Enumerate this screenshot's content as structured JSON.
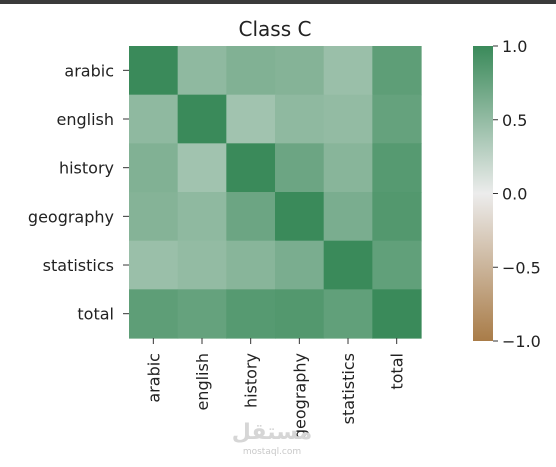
{
  "chart_data": {
    "type": "heatmap",
    "title": "Class C",
    "rows": [
      "arabic",
      "english",
      "history",
      "geography",
      "statistics",
      "total"
    ],
    "columns": [
      "arabic",
      "english",
      "history",
      "geography",
      "statistics",
      "total"
    ],
    "values": [
      [
        1.0,
        0.52,
        0.6,
        0.58,
        0.46,
        0.8
      ],
      [
        0.52,
        1.0,
        0.42,
        0.52,
        0.5,
        0.76
      ],
      [
        0.6,
        0.42,
        1.0,
        0.72,
        0.56,
        0.84
      ],
      [
        0.58,
        0.52,
        0.72,
        1.0,
        0.64,
        0.86
      ],
      [
        0.46,
        0.5,
        0.56,
        0.64,
        1.0,
        0.78
      ],
      [
        0.8,
        0.76,
        0.84,
        0.86,
        0.78,
        1.0
      ]
    ],
    "colorbar": {
      "min": -1.0,
      "max": 1.0,
      "ticks": [
        1.0,
        0.5,
        0.0,
        -0.5,
        -1.0
      ],
      "tick_labels": [
        "1.0",
        "0.5",
        "0.0",
        "−0.5",
        "−1.0"
      ],
      "color_low": "#a97c48",
      "color_mid": "#ececec",
      "color_high": "#3a8a5a"
    }
  },
  "watermark": {
    "text": "مستقل",
    "subtext": "mostaql.com"
  }
}
